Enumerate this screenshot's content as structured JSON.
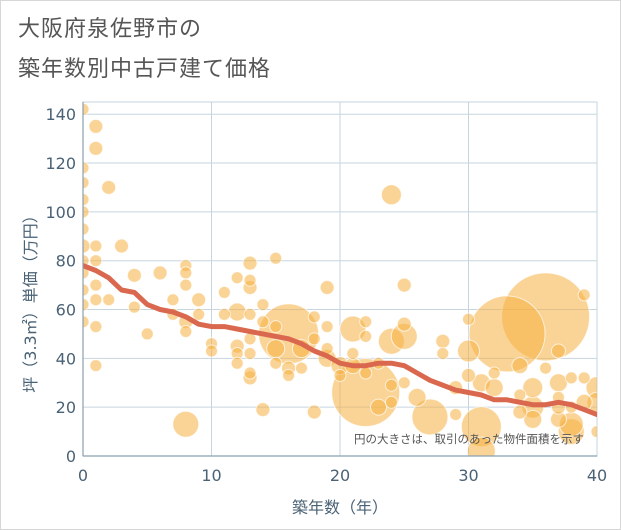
{
  "title_line1": "大阪府泉佐野市の",
  "title_line2": "築年数別中古戸建て価格",
  "colors": {
    "bubble": "#f5b042",
    "trend": "#d9684e",
    "grid": "#c7d5df",
    "text": "#4a6275"
  },
  "chart_data": {
    "type": "scatter",
    "xlabel": "築年数（年）",
    "ylabel": "坪（3.3㎡）単価（万円）",
    "note": "円の大きさは、取引のあった物件面積を示す",
    "xlim": [
      0,
      40
    ],
    "ylim": [
      0,
      145
    ],
    "xticks": [
      0,
      10,
      20,
      30,
      40
    ],
    "yticks": [
      0,
      20,
      40,
      60,
      80,
      100,
      120,
      140
    ],
    "grid": true,
    "points": [
      [
        0,
        142,
        6
      ],
      [
        0,
        118,
        6
      ],
      [
        0,
        112,
        6
      ],
      [
        0,
        105,
        6
      ],
      [
        0,
        100,
        6
      ],
      [
        0,
        93,
        6
      ],
      [
        0,
        86,
        7
      ],
      [
        0,
        80,
        6
      ],
      [
        0,
        75,
        6
      ],
      [
        0,
        68,
        6
      ],
      [
        0,
        62,
        6
      ],
      [
        0,
        55,
        6
      ],
      [
        1,
        135,
        7
      ],
      [
        1,
        126,
        7
      ],
      [
        1,
        86,
        6
      ],
      [
        1,
        80,
        6
      ],
      [
        1,
        70,
        6
      ],
      [
        1,
        64,
        6
      ],
      [
        1,
        53,
        6
      ],
      [
        1,
        37,
        6
      ],
      [
        2,
        110,
        7
      ],
      [
        2,
        64,
        6
      ],
      [
        3,
        86,
        7
      ],
      [
        4,
        74,
        7
      ],
      [
        4,
        61,
        6
      ],
      [
        5,
        50,
        6
      ],
      [
        6,
        75,
        7
      ],
      [
        7,
        64,
        6
      ],
      [
        7,
        58,
        6
      ],
      [
        8,
        78,
        6
      ],
      [
        8,
        75,
        6
      ],
      [
        8,
        70,
        6
      ],
      [
        8,
        55,
        7
      ],
      [
        8,
        51,
        6
      ],
      [
        8,
        13,
        13
      ],
      [
        9,
        64,
        7
      ],
      [
        9,
        58,
        6
      ],
      [
        10,
        46,
        6
      ],
      [
        10,
        43,
        6
      ],
      [
        11,
        67,
        6
      ],
      [
        11,
        58,
        6
      ],
      [
        12,
        73,
        6
      ],
      [
        12,
        59,
        9
      ],
      [
        12,
        45,
        7
      ],
      [
        12,
        42,
        6
      ],
      [
        12,
        38,
        6
      ],
      [
        13,
        79,
        7
      ],
      [
        13,
        72,
        6
      ],
      [
        13,
        69,
        7
      ],
      [
        13,
        58,
        6
      ],
      [
        13,
        48,
        6
      ],
      [
        13,
        42,
        6
      ],
      [
        13,
        34,
        6
      ],
      [
        13,
        32,
        7
      ],
      [
        14,
        62,
        6
      ],
      [
        14,
        55,
        6
      ],
      [
        14,
        19,
        7
      ],
      [
        15,
        81,
        6
      ],
      [
        15,
        53,
        6
      ],
      [
        15,
        44,
        9
      ],
      [
        15,
        38,
        6
      ],
      [
        16,
        50,
        30
      ],
      [
        16,
        36,
        7
      ],
      [
        16,
        33,
        6
      ],
      [
        17,
        44,
        9
      ],
      [
        17,
        36,
        6
      ],
      [
        18,
        57,
        6
      ],
      [
        18,
        48,
        6
      ],
      [
        18,
        18,
        7
      ],
      [
        19,
        69,
        7
      ],
      [
        19,
        53,
        6
      ],
      [
        19,
        44,
        6
      ],
      [
        19,
        40,
        9
      ],
      [
        20,
        37,
        9
      ],
      [
        20,
        33,
        6
      ],
      [
        21,
        52,
        13
      ],
      [
        21,
        42,
        6
      ],
      [
        21,
        37,
        8
      ],
      [
        22,
        26,
        34
      ],
      [
        22,
        55,
        6
      ],
      [
        22,
        49,
        6
      ],
      [
        22,
        34,
        6
      ],
      [
        23,
        38,
        6
      ],
      [
        23,
        20,
        8
      ],
      [
        24,
        107,
        10
      ],
      [
        24,
        47,
        13
      ],
      [
        24,
        29,
        6
      ],
      [
        24,
        22,
        6
      ],
      [
        25,
        70,
        7
      ],
      [
        25,
        54,
        7
      ],
      [
        25,
        49,
        13
      ],
      [
        25,
        30,
        6
      ],
      [
        26,
        24,
        9
      ],
      [
        27,
        16,
        18
      ],
      [
        28,
        47,
        7
      ],
      [
        28,
        42,
        6
      ],
      [
        29,
        28,
        7
      ],
      [
        29,
        17,
        6
      ],
      [
        30,
        56,
        6
      ],
      [
        30,
        43,
        11
      ],
      [
        30,
        33,
        7
      ],
      [
        31,
        30,
        9
      ],
      [
        31,
        12,
        20
      ],
      [
        31,
        2,
        14
      ],
      [
        32,
        28,
        9
      ],
      [
        32,
        34,
        6
      ],
      [
        33,
        50,
        38
      ],
      [
        34,
        37,
        8
      ],
      [
        34,
        25,
        6
      ],
      [
        34,
        18,
        7
      ],
      [
        35,
        28,
        10
      ],
      [
        35,
        20,
        11
      ],
      [
        35,
        15,
        9
      ],
      [
        36,
        57,
        44
      ],
      [
        36,
        36,
        6
      ],
      [
        37,
        43,
        7
      ],
      [
        37,
        30,
        9
      ],
      [
        37,
        20,
        7
      ],
      [
        37,
        15,
        8
      ],
      [
        37,
        24,
        6
      ],
      [
        38,
        32,
        6
      ],
      [
        38,
        20,
        6
      ],
      [
        38,
        13,
        12
      ],
      [
        38,
        10,
        13
      ],
      [
        39,
        66,
        6
      ],
      [
        39,
        32,
        6
      ],
      [
        39,
        22,
        8
      ],
      [
        40,
        28,
        11
      ],
      [
        40,
        22,
        10
      ],
      [
        40,
        10,
        6
      ]
    ],
    "trend": [
      [
        0,
        78
      ],
      [
        1,
        76
      ],
      [
        2,
        73
      ],
      [
        3,
        68
      ],
      [
        4,
        67
      ],
      [
        5,
        62
      ],
      [
        6,
        60
      ],
      [
        7,
        59
      ],
      [
        8,
        57
      ],
      [
        9,
        54
      ],
      [
        10,
        53
      ],
      [
        11,
        53
      ],
      [
        12,
        52
      ],
      [
        13,
        51
      ],
      [
        14,
        50
      ],
      [
        15,
        49
      ],
      [
        16,
        48
      ],
      [
        17,
        46
      ],
      [
        18,
        43
      ],
      [
        19,
        41
      ],
      [
        20,
        38
      ],
      [
        21,
        37
      ],
      [
        22,
        37
      ],
      [
        23,
        38
      ],
      [
        24,
        38
      ],
      [
        25,
        37
      ],
      [
        26,
        34
      ],
      [
        27,
        31
      ],
      [
        28,
        29
      ],
      [
        29,
        27
      ],
      [
        30,
        26
      ],
      [
        31,
        25
      ],
      [
        32,
        23
      ],
      [
        33,
        23
      ],
      [
        34,
        22
      ],
      [
        35,
        21
      ],
      [
        36,
        21
      ],
      [
        37,
        22
      ],
      [
        38,
        21
      ],
      [
        39,
        19
      ],
      [
        40,
        17
      ]
    ]
  }
}
